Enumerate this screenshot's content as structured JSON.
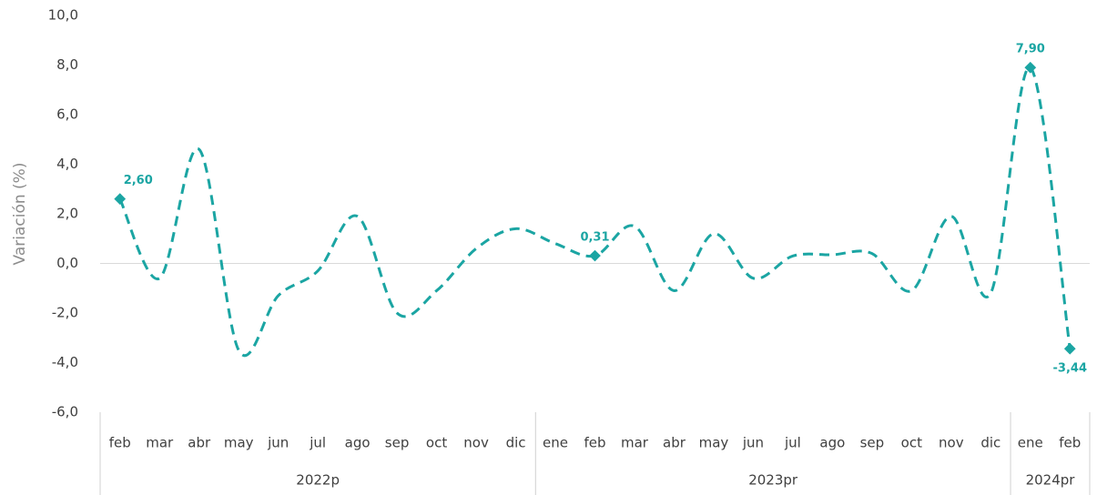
{
  "chart_data": {
    "type": "line",
    "y_label": "Variación (%)",
    "groups": [
      {
        "label": "2022p",
        "categories": [
          "feb",
          "mar",
          "abr",
          "may",
          "jun",
          "jul",
          "ago",
          "sep",
          "oct",
          "nov",
          "dic"
        ]
      },
      {
        "label": "2023pr",
        "categories": [
          "ene",
          "feb",
          "mar",
          "abr",
          "may",
          "jun",
          "jul",
          "ago",
          "sep",
          "oct",
          "nov",
          "dic"
        ]
      },
      {
        "label": "2024pr",
        "categories": [
          "ene",
          "feb"
        ]
      }
    ],
    "values": [
      2.6,
      -0.6,
      4.6,
      -3.5,
      -1.3,
      -0.3,
      1.9,
      -2.0,
      -1.1,
      0.6,
      1.4,
      0.8,
      0.31,
      1.5,
      -1.1,
      1.2,
      -0.6,
      0.3,
      0.35,
      0.4,
      -1.1,
      1.9,
      -1.2,
      7.9,
      -3.44
    ],
    "value_labels": [
      "2,60",
      null,
      null,
      null,
      null,
      null,
      null,
      null,
      null,
      null,
      null,
      null,
      "0,31",
      null,
      null,
      null,
      null,
      null,
      null,
      null,
      null,
      null,
      null,
      "7,90",
      "-3,44"
    ],
    "color": "#1ba5a3",
    "ylim": [
      -6,
      10
    ],
    "yticks": [
      {
        "value": -6,
        "label": "-6,0"
      },
      {
        "value": -4,
        "label": "-4,0"
      },
      {
        "value": -2,
        "label": "-2,0"
      },
      {
        "value": 0,
        "label": "0,0"
      },
      {
        "value": 2,
        "label": "2,0"
      },
      {
        "value": 4,
        "label": "4,0"
      },
      {
        "value": 6,
        "label": "6,0"
      },
      {
        "value": 8,
        "label": "8,0"
      },
      {
        "value": 10,
        "label": "10,0"
      }
    ]
  }
}
